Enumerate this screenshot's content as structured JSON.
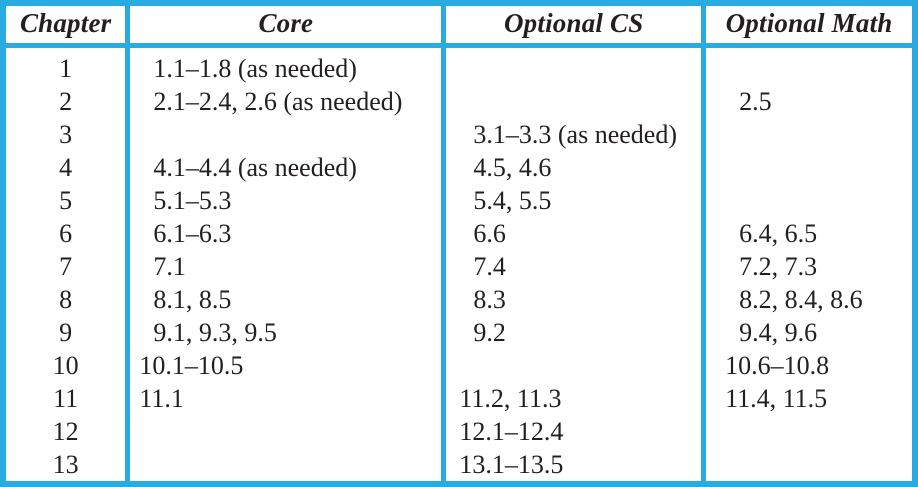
{
  "colors": {
    "border_accent": "#29abe2",
    "text": "#231f20",
    "background": "#ffffff"
  },
  "table": {
    "columns": [
      {
        "key": "chapter",
        "label": "Chapter"
      },
      {
        "key": "core",
        "label": "Core"
      },
      {
        "key": "optional_cs",
        "label": "Optional CS"
      },
      {
        "key": "optional_math",
        "label": "Optional Math"
      }
    ],
    "rows": [
      {
        "chapter": "1",
        "core": "1.1–1.8 (as needed)",
        "optional_cs": "",
        "optional_math": ""
      },
      {
        "chapter": "2",
        "core": "2.1–2.4, 2.6 (as needed)",
        "optional_cs": "",
        "optional_math": "2.5"
      },
      {
        "chapter": "3",
        "core": "",
        "optional_cs": "3.1–3.3 (as needed)",
        "optional_math": ""
      },
      {
        "chapter": "4",
        "core": "4.1–4.4 (as needed)",
        "optional_cs": "4.5, 4.6",
        "optional_math": ""
      },
      {
        "chapter": "5",
        "core": "5.1–5.3",
        "optional_cs": "5.4, 5.5",
        "optional_math": ""
      },
      {
        "chapter": "6",
        "core": "6.1–6.3",
        "optional_cs": "6.6",
        "optional_math": "6.4, 6.5"
      },
      {
        "chapter": "7",
        "core": "7.1",
        "optional_cs": "7.4",
        "optional_math": "7.2, 7.3"
      },
      {
        "chapter": "8",
        "core": "8.1, 8.5",
        "optional_cs": "8.3",
        "optional_math": "8.2, 8.4, 8.6"
      },
      {
        "chapter": "9",
        "core": "9.1, 9.3, 9.5",
        "optional_cs": "9.2",
        "optional_math": "9.4, 9.6"
      },
      {
        "chapter": "10",
        "core": "10.1–10.5",
        "optional_cs": "",
        "optional_math": "10.6–10.8"
      },
      {
        "chapter": "11",
        "core": "11.1",
        "optional_cs": "11.2, 11.3",
        "optional_math": "11.4, 11.5"
      },
      {
        "chapter": "12",
        "core": "",
        "optional_cs": "12.1–12.4",
        "optional_math": ""
      },
      {
        "chapter": "13",
        "core": "",
        "optional_cs": "13.1–13.5",
        "optional_math": ""
      }
    ]
  }
}
